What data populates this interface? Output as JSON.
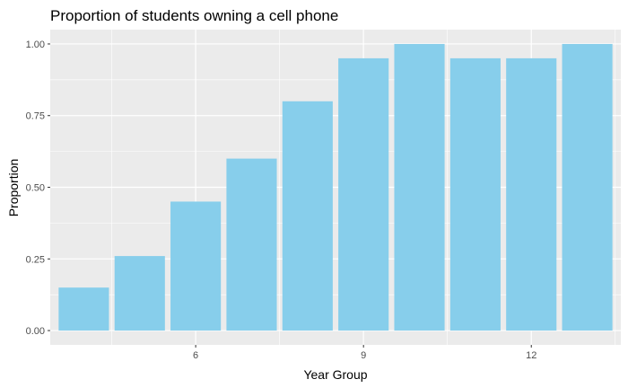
{
  "chart_data": {
    "type": "bar",
    "title": "Proportion of students owning a cell phone",
    "xlabel": "Year Group",
    "ylabel": "Proportion",
    "x": [
      4,
      5,
      6,
      7,
      8,
      9,
      10,
      11,
      12,
      13
    ],
    "values": [
      0.15,
      0.26,
      0.45,
      0.6,
      0.8,
      0.95,
      1.0,
      0.95,
      0.95,
      1.0
    ],
    "xlim": [
      3.4,
      13.6
    ],
    "ylim": [
      -0.05,
      1.05
    ],
    "x_ticks": [
      {
        "value": 6,
        "label": "6"
      },
      {
        "value": 9,
        "label": "9"
      },
      {
        "value": 12,
        "label": "12"
      }
    ],
    "y_ticks": [
      {
        "value": 0.0,
        "label": "0.00"
      },
      {
        "value": 0.25,
        "label": "0.25"
      },
      {
        "value": 0.5,
        "label": "0.50"
      },
      {
        "value": 0.75,
        "label": "0.75"
      },
      {
        "value": 1.0,
        "label": "1.00"
      }
    ],
    "grid": true,
    "colors": {
      "bar": "#87CEEB",
      "panel": "#EBEBEB",
      "grid": "#FFFFFF",
      "tick_text": "#4D4D4D"
    }
  }
}
